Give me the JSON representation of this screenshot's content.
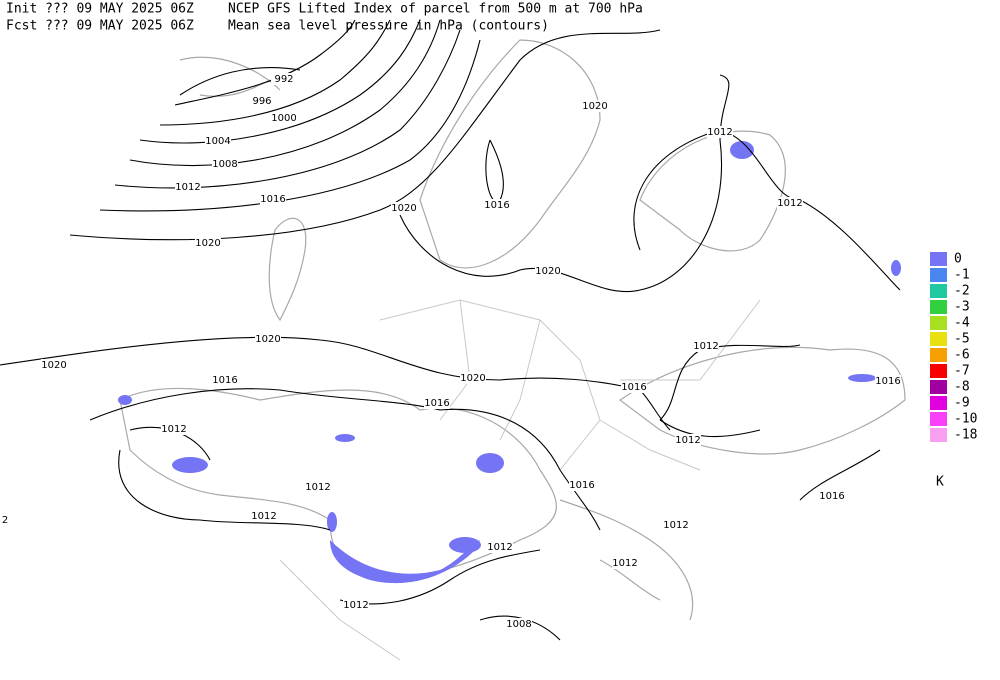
{
  "header": {
    "init": "Init  ??? 09 MAY 2025 06Z",
    "fcst": "Fcst ??? 09 MAY 2025 06Z",
    "title": "NCEP GFS Lifted Index of parcel from 500 m at 700 hPa",
    "subtitle": "Mean sea level pressure in hPa (contours)"
  },
  "contour_labels": [
    "992",
    "996",
    "1000",
    "1004",
    "1008",
    "1012",
    "1016",
    "1020",
    "1020",
    "1012",
    "1012",
    "1020",
    "1016",
    "1020",
    "1020",
    "1020",
    "1016",
    "1020",
    "1016",
    "1016",
    "1012",
    "1012",
    "1016",
    "1012",
    "1012",
    "1012",
    "1016",
    "1016",
    "1012",
    "1012",
    "1012",
    "1012",
    "1008",
    "2"
  ],
  "legend": {
    "unit": "K",
    "items": [
      {
        "label": "0",
        "color": "#7474f4"
      },
      {
        "label": "-1",
        "color": "#4a86f0"
      },
      {
        "label": "-2",
        "color": "#20c8a0"
      },
      {
        "label": "-3",
        "color": "#30d040"
      },
      {
        "label": "-4",
        "color": "#a8e020"
      },
      {
        "label": "-5",
        "color": "#e8e010"
      },
      {
        "label": "-6",
        "color": "#f8a000"
      },
      {
        "label": "-7",
        "color": "#f80000"
      },
      {
        "label": "-8",
        "color": "#a000a0"
      },
      {
        "label": "-9",
        "color": "#e000e0"
      },
      {
        "label": "-10",
        "color": "#f840f8"
      },
      {
        "label": "-18",
        "color": "#f8a0f0"
      }
    ]
  }
}
